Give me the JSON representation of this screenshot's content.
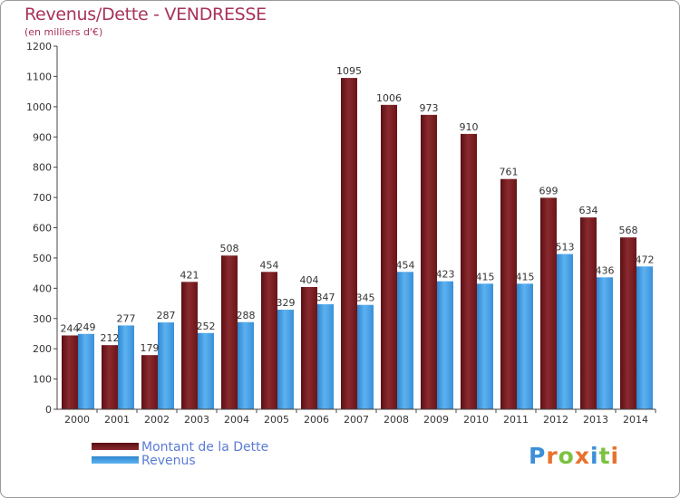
{
  "header": {
    "title": "Revenus/Dette - VENDRESSE",
    "subtitle": "(en milliers d'€)"
  },
  "legend": {
    "debt_label": "Montant de la Dette",
    "revenue_label": "Revenus"
  },
  "logo": {
    "letters": [
      "P",
      "r",
      "o",
      "x",
      "i",
      "t",
      "i"
    ],
    "colors": [
      "#3c8fd8",
      "#e8722c",
      "#7cc242",
      "#e8722c",
      "#3c8fd8",
      "#7cc242",
      "#e8722c"
    ]
  },
  "colors": {
    "debt": "#7a1e22",
    "revenue": "#4aa3e8",
    "title": "#a8325a",
    "legend_text": "#5b7bd6"
  },
  "chart_data": {
    "type": "bar",
    "title": "Revenus/Dette - VENDRESSE",
    "ylabel": "(en milliers d'€)",
    "xlabel": "",
    "ylim": [
      0,
      1200
    ],
    "yticks": [
      0,
      100,
      200,
      300,
      400,
      500,
      600,
      700,
      800,
      900,
      1000,
      1100,
      1200
    ],
    "grid": false,
    "legend_position": "bottom-left",
    "categories": [
      "2000",
      "2001",
      "2002",
      "2003",
      "2004",
      "2005",
      "2006",
      "2007",
      "2008",
      "2009",
      "2010",
      "2011",
      "2012",
      "2013",
      "2014"
    ],
    "series": [
      {
        "name": "Montant de la Dette",
        "values": [
          244,
          212,
          179,
          421,
          508,
          454,
          404,
          1095,
          1006,
          973,
          910,
          761,
          699,
          634,
          568
        ]
      },
      {
        "name": "Revenus",
        "values": [
          249,
          277,
          287,
          252,
          288,
          329,
          347,
          345,
          454,
          423,
          415,
          415,
          513,
          436,
          472
        ]
      }
    ]
  }
}
